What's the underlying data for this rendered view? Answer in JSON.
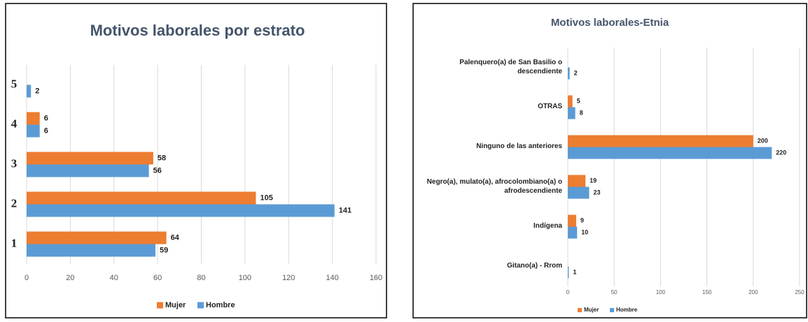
{
  "chart_data": [
    {
      "type": "bar",
      "orientation": "horizontal",
      "title": "Motivos laborales por estrato",
      "categories": [
        "1",
        "2",
        "3",
        "4",
        "5"
      ],
      "series": [
        {
          "name": "Mujer",
          "color": "#ed7d31",
          "values": [
            64,
            105,
            58,
            6,
            null
          ]
        },
        {
          "name": "Hombre",
          "color": "#5b9bd5",
          "values": [
            59,
            141,
            56,
            6,
            2
          ]
        }
      ],
      "xlim": [
        0,
        160
      ],
      "xticks": [
        0,
        20,
        40,
        60,
        80,
        100,
        120,
        140,
        160
      ],
      "grid": true,
      "legend": "bottom"
    },
    {
      "type": "bar",
      "orientation": "horizontal",
      "title": "Motivos laborales-Etnia",
      "categories": [
        "Gitano(a) - Rrom",
        "Indígena",
        "Negro(a), mulato(a), afrocolombiano(a) o afrodescendiente",
        "Ninguno de las anteriores",
        "OTRAS",
        "Palenquero(a) de San Basilio o descendiente"
      ],
      "series": [
        {
          "name": "Mujer",
          "color": "#ed7d31",
          "values": [
            null,
            9,
            19,
            200,
            5,
            null
          ]
        },
        {
          "name": "Hombre",
          "color": "#5b9bd5",
          "values": [
            1,
            10,
            23,
            220,
            8,
            2
          ]
        }
      ],
      "xlim": [
        0,
        250
      ],
      "xticks": [
        0,
        50,
        100,
        150,
        200,
        250
      ],
      "grid": true,
      "legend": "bottom"
    }
  ]
}
